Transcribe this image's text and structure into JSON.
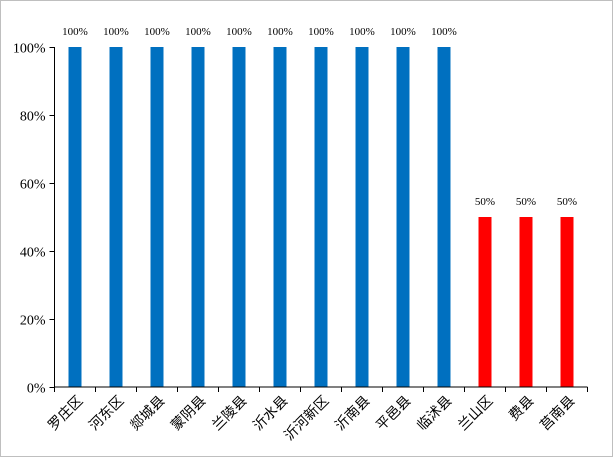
{
  "chart_data": {
    "type": "bar",
    "categories": [
      "罗庄区",
      "河东区",
      "郯城县",
      "蒙阴县",
      "兰陵县",
      "沂水县",
      "沂河新区",
      "沂南县",
      "平邑县",
      "临沭县",
      "兰山区",
      "费县",
      "莒南县"
    ],
    "values": [
      100,
      100,
      100,
      100,
      100,
      100,
      100,
      100,
      100,
      100,
      50,
      50,
      50
    ],
    "data_labels": [
      "100%",
      "100%",
      "100%",
      "100%",
      "100%",
      "100%",
      "100%",
      "100%",
      "100%",
      "100%",
      "50%",
      "50%",
      "50%"
    ],
    "bar_colors": [
      "#0070C0",
      "#0070C0",
      "#0070C0",
      "#0070C0",
      "#0070C0",
      "#0070C0",
      "#0070C0",
      "#0070C0",
      "#0070C0",
      "#0070C0",
      "#FF0000",
      "#FF0000",
      "#FF0000"
    ],
    "ylim": [
      0,
      100
    ],
    "yticks": [
      0,
      20,
      40,
      60,
      80,
      100
    ],
    "ytick_labels": [
      "0%",
      "20%",
      "40%",
      "60%",
      "80%",
      "100%"
    ],
    "grid": false,
    "legend": "none"
  }
}
